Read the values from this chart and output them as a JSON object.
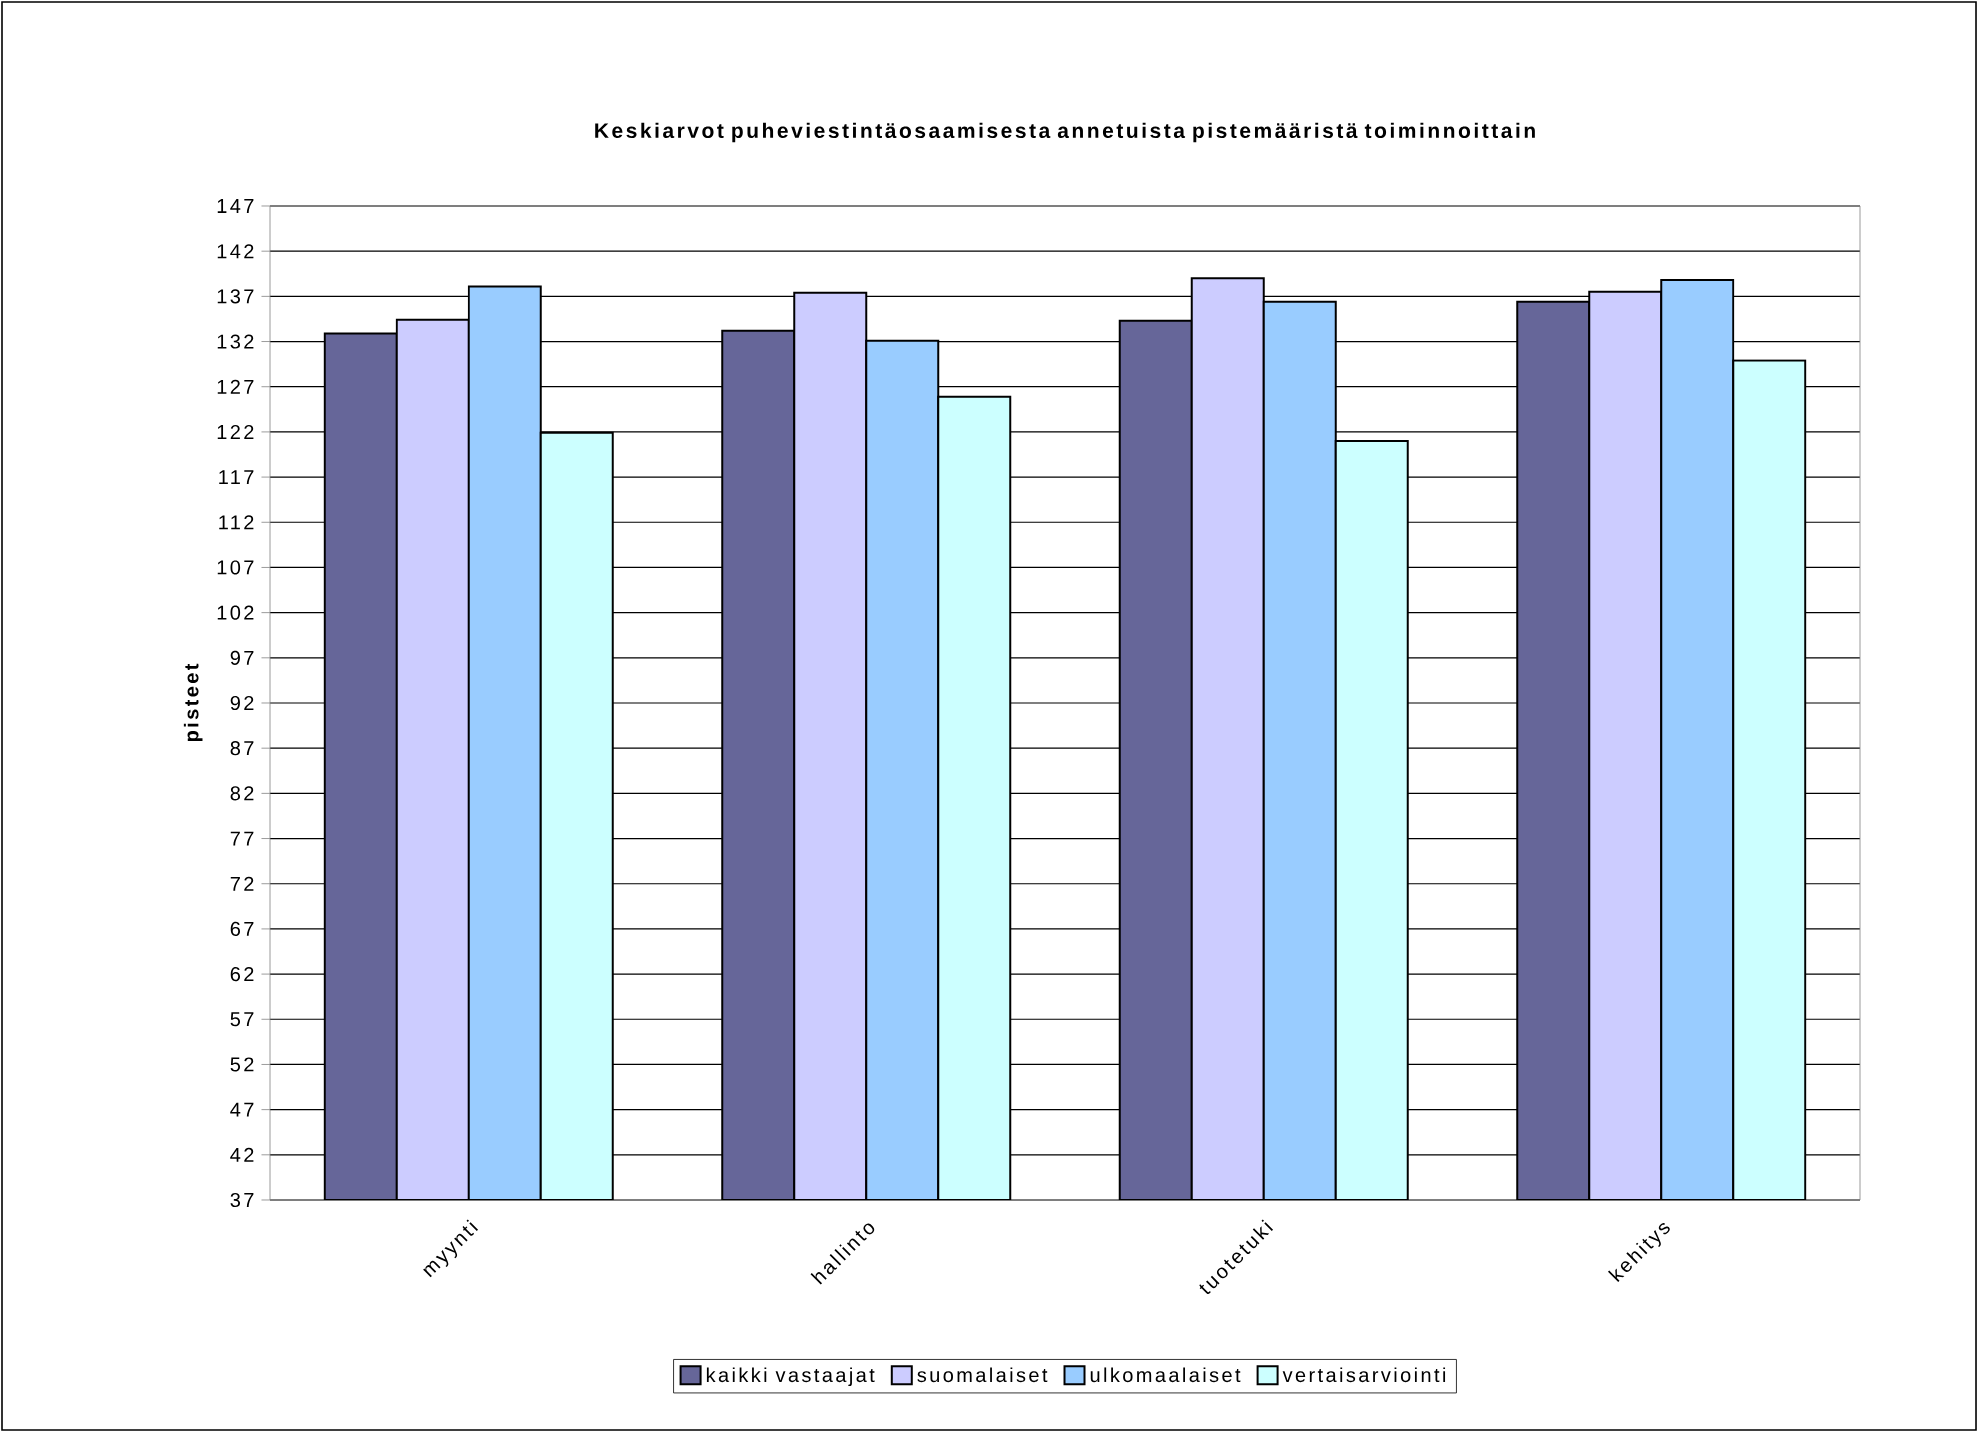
{
  "chart_data": {
    "type": "bar",
    "title": "Keskiarvot puheviestintäosaamisesta annetuista pistemääristä toiminnoittain",
    "ylabel": "pisteet",
    "categories": [
      "myynti",
      "hallinto",
      "tuotetuki",
      "kehitys"
    ],
    "series": [
      {
        "name": "kaikki vastaajat",
        "color": "#666699",
        "values": [
          132.9,
          133.2,
          134.3,
          136.4
        ]
      },
      {
        "name": "suomalaiset",
        "color": "#ccccff",
        "values": [
          134.4,
          137.4,
          139.0,
          137.5
        ]
      },
      {
        "name": "ulkomaalaiset",
        "color": "#99ccff",
        "values": [
          138.1,
          132.1,
          136.4,
          138.8
        ]
      },
      {
        "name": "vertaisarviointi",
        "color": "#ccffff",
        "values": [
          121.9,
          125.9,
          121.0,
          129.9
        ]
      }
    ],
    "ylim": [
      37,
      147
    ],
    "yticks": [
      37,
      42,
      47,
      52,
      57,
      62,
      67,
      72,
      77,
      82,
      87,
      92,
      97,
      102,
      107,
      112,
      117,
      122,
      127,
      132,
      137,
      142,
      147
    ],
    "grid": "y",
    "legend": "bottom"
  }
}
